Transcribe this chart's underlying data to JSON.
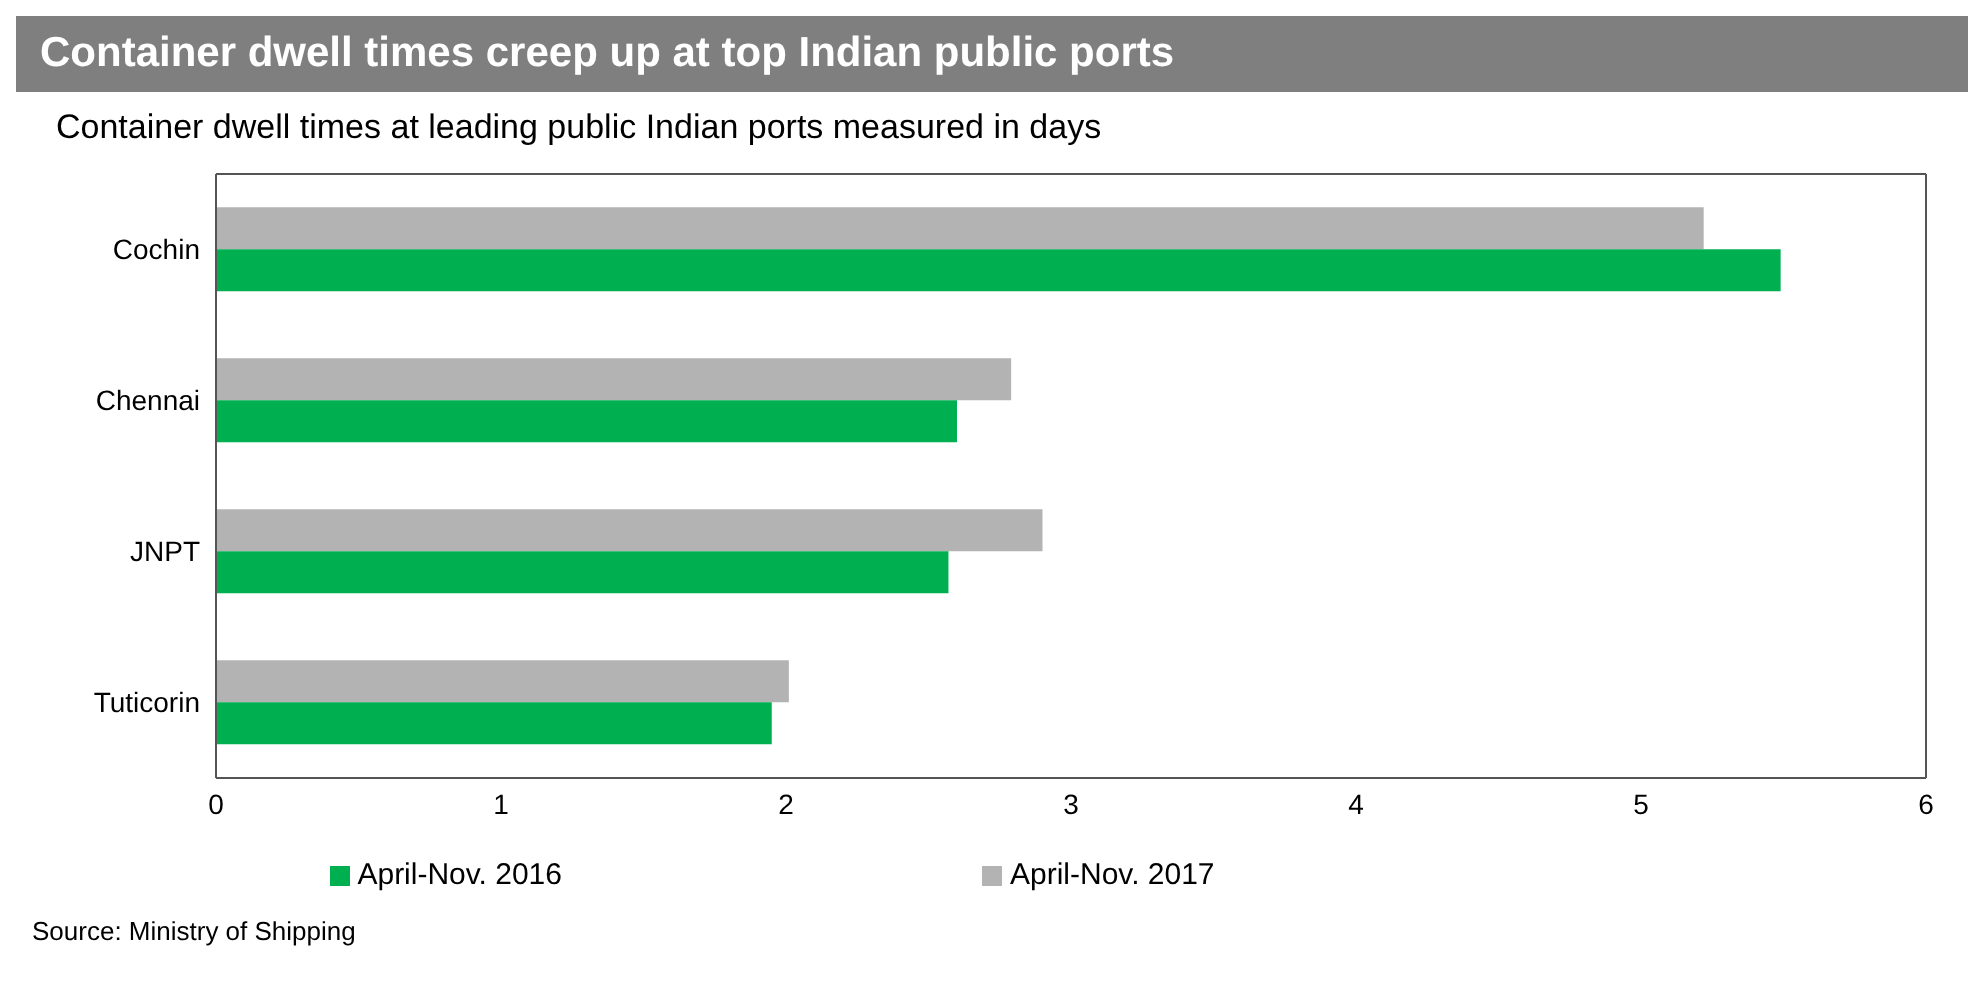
{
  "chart_data": {
    "type": "bar",
    "orientation": "horizontal",
    "title": "Container dwell times creep up at top Indian public ports",
    "subtitle": "Container dwell times at leading public Indian ports measured in days",
    "categories": [
      "Cochin",
      "Chennai",
      "JNPT",
      "Tuticorin"
    ],
    "series": [
      {
        "name": "April-Nov. 2017",
        "color": "#b3b3b3",
        "values": [
          5.22,
          2.79,
          2.9,
          2.01
        ]
      },
      {
        "name": "April-Nov. 2016",
        "color": "#00b050",
        "values": [
          5.49,
          2.6,
          2.57,
          1.95
        ]
      }
    ],
    "xlim": [
      0,
      6
    ],
    "xticks": [
      0,
      1,
      2,
      3,
      4,
      5,
      6
    ],
    "grid": false,
    "legend": "bottom",
    "annotations": [
      "Source: Ministry of Shipping"
    ]
  }
}
